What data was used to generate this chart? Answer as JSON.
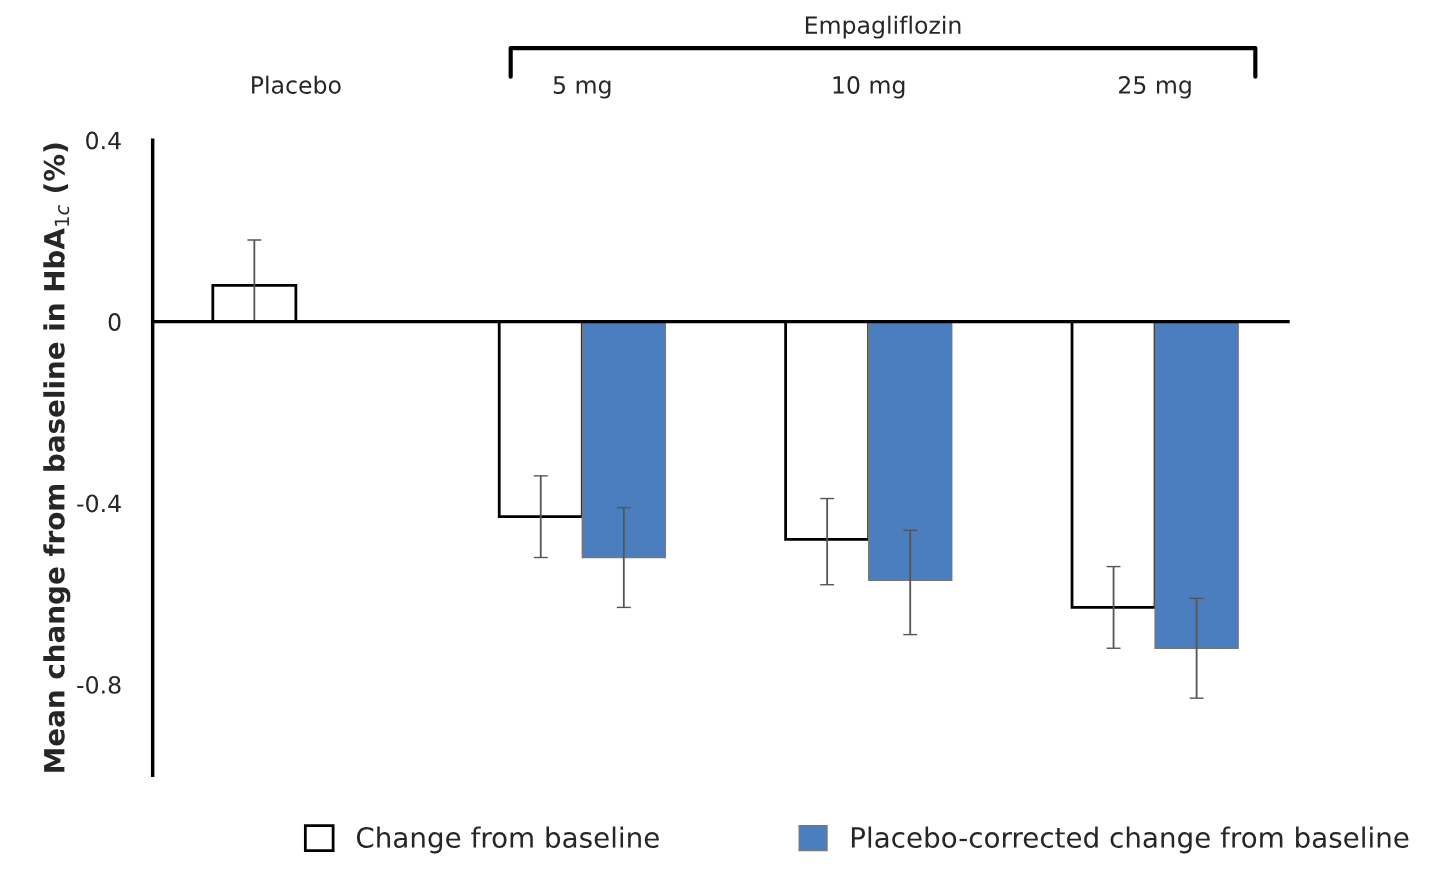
{
  "chart_data": {
    "type": "bar",
    "ylabel": "Mean change from baseline in HbA$_{1c}$ (%)",
    "categories": [
      "Placebo",
      "5 mg",
      "10 mg",
      "25 mg"
    ],
    "series": [
      {
        "name": "Change from baseline",
        "color": "#ffffff",
        "values": [
          0.08,
          -0.43,
          -0.48,
          -0.63
        ],
        "errors": [
          [
            0,
            0.18
          ],
          [
            -0.52,
            -0.34
          ],
          [
            -0.58,
            -0.39
          ],
          [
            -0.72,
            -0.54
          ]
        ]
      },
      {
        "name": "Placebo-corrected change from baseline",
        "color": "#4a7ebf",
        "values": [
          null,
          -0.52,
          -0.57,
          -0.72
        ],
        "errors": [
          null,
          [
            -0.63,
            -0.41
          ],
          [
            -0.69,
            -0.46
          ],
          [
            -0.83,
            -0.61
          ]
        ]
      }
    ],
    "ylim": [
      -1.0,
      0.4
    ],
    "yticks": [
      0.4,
      0,
      -0.4,
      -0.8
    ],
    "annotations": [
      "Empagliflozin"
    ],
    "ref_lines": [
      {
        "axis": "y",
        "value": 0,
        "color": "#000000"
      }
    ],
    "legend": "bottom",
    "grid": false
  }
}
